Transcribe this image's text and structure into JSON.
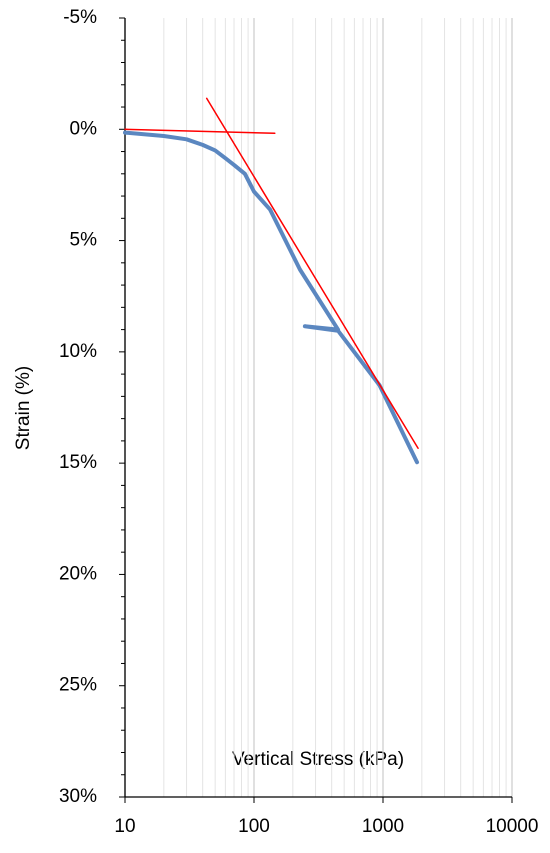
{
  "chart_data": {
    "type": "line",
    "x_label": "Vertical Stress (kPa)",
    "y_label": "Strain (%)",
    "xscale": "log",
    "y_inverted": true,
    "minor_grid": true,
    "xlim": [
      10,
      10000
    ],
    "xticks": [
      10,
      100,
      1000,
      10000
    ],
    "ylim": [
      -5,
      30
    ],
    "yticks": [
      {
        "value": -5,
        "label": "-5%"
      },
      {
        "value": 0,
        "label": "0%"
      },
      {
        "value": 5,
        "label": "5%"
      },
      {
        "value": 10,
        "label": "10%"
      },
      {
        "value": 15,
        "label": "15%"
      },
      {
        "value": 20,
        "label": "20%"
      },
      {
        "value": 25,
        "label": "25%"
      },
      {
        "value": 30,
        "label": "30%"
      }
    ],
    "series": [
      {
        "color": "#5b87c0",
        "width": 4,
        "x": [
          10,
          20,
          30,
          40,
          50,
          60,
          70,
          85,
          100,
          133,
          227,
          448,
          248,
          448,
          940,
          1835
        ],
        "values": [
          0.15,
          0.3,
          0.45,
          0.7,
          0.95,
          1.3,
          1.6,
          2.0,
          2.8,
          3.6,
          6.3,
          9.0,
          8.85,
          9.05,
          11.5,
          14.96
        ]
      },
      {
        "color": "#ff0000",
        "width": 1.5,
        "x": [
          10,
          145
        ],
        "values": [
          0.0,
          0.18
        ]
      },
      {
        "color": "#ff0000",
        "width": 1.5,
        "x": [
          43,
          1870
        ],
        "values": [
          -1.39,
          14.33
        ]
      }
    ]
  }
}
